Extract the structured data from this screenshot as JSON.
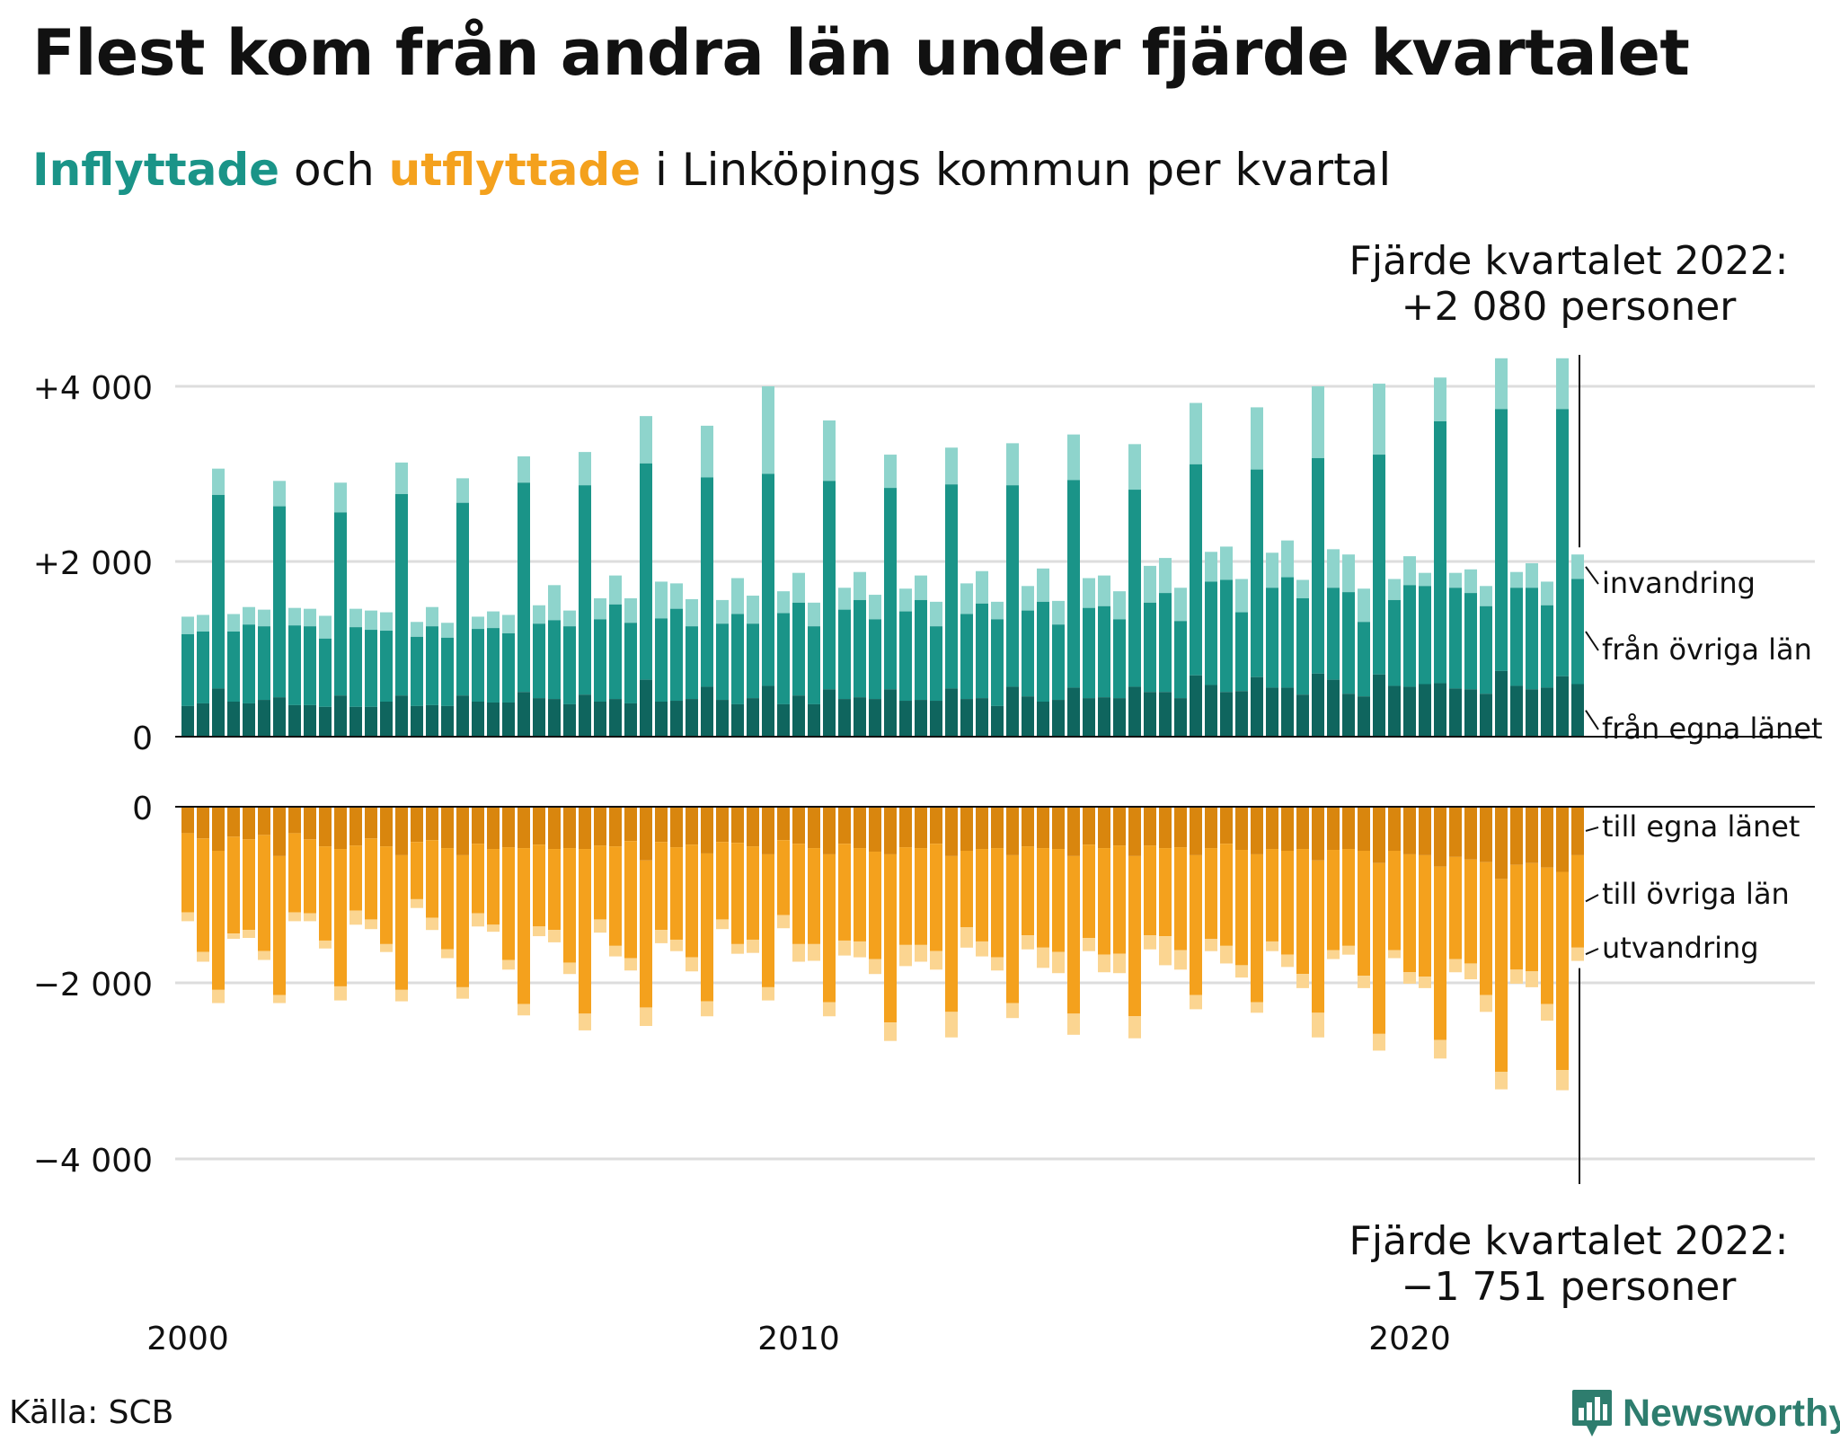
{
  "title": "Flest kom från andra län under fjärde kvartalet",
  "subtitle": {
    "part_in": "Inflyttade",
    "part_mid1": " och ",
    "part_out": "utflyttade",
    "part_mid2": " i Linköpings kommun per kvartal"
  },
  "colors": {
    "in_own": "#0f655e",
    "in_other": "#1a9488",
    "in_foreign": "#8ed4cc",
    "out_own": "#d9860e",
    "out_other": "#f4a11d",
    "out_foreign": "#fbd591",
    "axis": "#111111",
    "grid": "#dddddd"
  },
  "source": "Källa: SCB",
  "brand": "Newsworthy",
  "brand_icon": "bar-chart-speech-icon",
  "chart_data": {
    "type": "bar",
    "stacked": true,
    "start": "2000 Q1",
    "frequency": "quarterly",
    "x_ticks": [
      "2000",
      "2010",
      "2020"
    ],
    "y_ticks": {
      "in": [
        {
          "value": 0,
          "label": "0"
        },
        {
          "value": 2000,
          "label": "+2 000"
        },
        {
          "value": 4000,
          "label": "+4 000"
        }
      ],
      "out": [
        {
          "value": 0,
          "label": "0"
        },
        {
          "value": -2000,
          "label": "−2 000"
        },
        {
          "value": -4000,
          "label": "−4 000"
        }
      ]
    },
    "ylim_in": [
      0,
      4000
    ],
    "ylim_out": [
      -4000,
      0
    ],
    "grid": true,
    "series_labels": {
      "in_foreign": "invandring",
      "in_other": "från övriga län",
      "in_own": "från egna länet",
      "out_own": "till egna länet",
      "out_other": "till övriga län",
      "out_foreign": "utvandring"
    },
    "annotations": {
      "in": {
        "line1": "Fjärde kvartalet 2022:",
        "line2": "+2 080 personer"
      },
      "out": {
        "line1": "Fjärde kvartalet 2022:",
        "line2": "−1 751 personer"
      }
    },
    "inflow_cumulative": [
      [
        350,
        1170,
        1370
      ],
      [
        380,
        1200,
        1390
      ],
      [
        550,
        2760,
        3060
      ],
      [
        400,
        1200,
        1400
      ],
      [
        380,
        1280,
        1480
      ],
      [
        420,
        1260,
        1450
      ],
      [
        450,
        2630,
        2920
      ],
      [
        360,
        1270,
        1470
      ],
      [
        360,
        1260,
        1460
      ],
      [
        340,
        1120,
        1380
      ],
      [
        470,
        2560,
        2900
      ],
      [
        340,
        1250,
        1460
      ],
      [
        340,
        1220,
        1440
      ],
      [
        400,
        1210,
        1420
      ],
      [
        470,
        2770,
        3130
      ],
      [
        350,
        1140,
        1310
      ],
      [
        360,
        1260,
        1480
      ],
      [
        350,
        1130,
        1300
      ],
      [
        470,
        2670,
        2950
      ],
      [
        400,
        1230,
        1370
      ],
      [
        390,
        1240,
        1430
      ],
      [
        390,
        1180,
        1390
      ],
      [
        510,
        2900,
        3200
      ],
      [
        440,
        1290,
        1500
      ],
      [
        430,
        1330,
        1730
      ],
      [
        370,
        1260,
        1440
      ],
      [
        480,
        2870,
        3250
      ],
      [
        400,
        1340,
        1580
      ],
      [
        430,
        1510,
        1840
      ],
      [
        380,
        1300,
        1580
      ],
      [
        650,
        3120,
        3660
      ],
      [
        400,
        1350,
        1770
      ],
      [
        410,
        1460,
        1750
      ],
      [
        430,
        1260,
        1570
      ],
      [
        570,
        2960,
        3550
      ],
      [
        420,
        1290,
        1560
      ],
      [
        370,
        1400,
        1810
      ],
      [
        440,
        1290,
        1610
      ],
      [
        580,
        3000,
        4000
      ],
      [
        370,
        1410,
        1660
      ],
      [
        470,
        1530,
        1870
      ],
      [
        370,
        1260,
        1530
      ],
      [
        540,
        2920,
        3610
      ],
      [
        430,
        1450,
        1700
      ],
      [
        450,
        1560,
        1880
      ],
      [
        430,
        1340,
        1620
      ],
      [
        540,
        2840,
        3220
      ],
      [
        410,
        1430,
        1690
      ],
      [
        420,
        1560,
        1840
      ],
      [
        410,
        1260,
        1540
      ],
      [
        550,
        2880,
        3300
      ],
      [
        430,
        1400,
        1750
      ],
      [
        440,
        1520,
        1890
      ],
      [
        350,
        1340,
        1540
      ],
      [
        570,
        2870,
        3350
      ],
      [
        460,
        1440,
        1720
      ],
      [
        400,
        1540,
        1920
      ],
      [
        420,
        1280,
        1550
      ],
      [
        560,
        2930,
        3450
      ],
      [
        440,
        1470,
        1810
      ],
      [
        450,
        1490,
        1840
      ],
      [
        440,
        1340,
        1660
      ],
      [
        570,
        2820,
        3340
      ],
      [
        510,
        1530,
        1950
      ],
      [
        510,
        1640,
        2040
      ],
      [
        440,
        1320,
        1700
      ],
      [
        700,
        3110,
        3810
      ],
      [
        590,
        1770,
        2110
      ],
      [
        510,
        1790,
        2170
      ],
      [
        520,
        1420,
        1800
      ],
      [
        680,
        3050,
        3760
      ],
      [
        560,
        1700,
        2100
      ],
      [
        560,
        1820,
        2240
      ],
      [
        480,
        1580,
        1790
      ],
      [
        720,
        3180,
        4000
      ],
      [
        650,
        1700,
        2140
      ],
      [
        490,
        1650,
        2080
      ],
      [
        460,
        1310,
        1690
      ],
      [
        710,
        3220,
        4030
      ],
      [
        580,
        1560,
        1800
      ],
      [
        570,
        1730,
        2060
      ],
      [
        600,
        1720,
        1870
      ],
      [
        610,
        3600,
        4100
      ],
      [
        550,
        1700,
        1870
      ],
      [
        540,
        1640,
        1910
      ],
      [
        490,
        1490,
        1720
      ],
      [
        750,
        3740,
        4320
      ],
      [
        580,
        1700,
        1880
      ],
      [
        540,
        1700,
        1980
      ],
      [
        560,
        1500,
        1770
      ],
      [
        690,
        3740,
        4320
      ],
      [
        600,
        1800,
        2080
      ]
    ],
    "outflow_cumulative": [
      [
        -300,
        -1200,
        -1300
      ],
      [
        -360,
        -1650,
        -1760
      ],
      [
        -500,
        -2080,
        -2230
      ],
      [
        -340,
        -1440,
        -1500
      ],
      [
        -370,
        -1400,
        -1490
      ],
      [
        -320,
        -1640,
        -1740
      ],
      [
        -560,
        -2140,
        -2230
      ],
      [
        -300,
        -1200,
        -1300
      ],
      [
        -370,
        -1210,
        -1300
      ],
      [
        -450,
        -1520,
        -1610
      ],
      [
        -480,
        -2040,
        -2200
      ],
      [
        -440,
        -1180,
        -1340
      ],
      [
        -360,
        -1280,
        -1390
      ],
      [
        -450,
        -1560,
        -1650
      ],
      [
        -550,
        -2080,
        -2210
      ],
      [
        -400,
        -1050,
        -1150
      ],
      [
        -380,
        -1260,
        -1400
      ],
      [
        -470,
        -1620,
        -1720
      ],
      [
        -550,
        -2050,
        -2180
      ],
      [
        -420,
        -1210,
        -1360
      ],
      [
        -480,
        -1340,
        -1420
      ],
      [
        -460,
        -1740,
        -1850
      ],
      [
        -470,
        -2240,
        -2370
      ],
      [
        -430,
        -1360,
        -1470
      ],
      [
        -480,
        -1400,
        -1540
      ],
      [
        -470,
        -1770,
        -1900
      ],
      [
        -480,
        -2350,
        -2540
      ],
      [
        -440,
        -1280,
        -1430
      ],
      [
        -450,
        -1580,
        -1700
      ],
      [
        -390,
        -1720,
        -1860
      ],
      [
        -610,
        -2280,
        -2490
      ],
      [
        -400,
        -1400,
        -1550
      ],
      [
        -460,
        -1510,
        -1640
      ],
      [
        -430,
        -1710,
        -1870
      ],
      [
        -530,
        -2210,
        -2380
      ],
      [
        -400,
        -1280,
        -1390
      ],
      [
        -410,
        -1560,
        -1670
      ],
      [
        -450,
        -1510,
        -1660
      ],
      [
        -540,
        -2050,
        -2200
      ],
      [
        -380,
        -1230,
        -1380
      ],
      [
        -420,
        -1560,
        -1760
      ],
      [
        -470,
        -1560,
        -1750
      ],
      [
        -540,
        -2220,
        -2380
      ],
      [
        -420,
        -1520,
        -1690
      ],
      [
        -470,
        -1530,
        -1710
      ],
      [
        -510,
        -1730,
        -1900
      ],
      [
        -540,
        -2450,
        -2660
      ],
      [
        -460,
        -1570,
        -1810
      ],
      [
        -470,
        -1570,
        -1760
      ],
      [
        -420,
        -1640,
        -1850
      ],
      [
        -560,
        -2330,
        -2620
      ],
      [
        -500,
        -1370,
        -1600
      ],
      [
        -480,
        -1530,
        -1700
      ],
      [
        -470,
        -1710,
        -1860
      ],
      [
        -550,
        -2230,
        -2400
      ],
      [
        -450,
        -1460,
        -1620
      ],
      [
        -470,
        -1600,
        -1830
      ],
      [
        -480,
        -1650,
        -1890
      ],
      [
        -560,
        -2350,
        -2590
      ],
      [
        -430,
        -1490,
        -1640
      ],
      [
        -470,
        -1680,
        -1880
      ],
      [
        -440,
        -1670,
        -1890
      ],
      [
        -560,
        -2380,
        -2630
      ],
      [
        -440,
        -1460,
        -1620
      ],
      [
        -470,
        -1470,
        -1800
      ],
      [
        -460,
        -1630,
        -1850
      ],
      [
        -550,
        -2140,
        -2300
      ],
      [
        -470,
        -1500,
        -1640
      ],
      [
        -420,
        -1580,
        -1780
      ],
      [
        -490,
        -1800,
        -1940
      ],
      [
        -540,
        -2220,
        -2340
      ],
      [
        -480,
        -1530,
        -1640
      ],
      [
        -500,
        -1680,
        -1820
      ],
      [
        -480,
        -1900,
        -2060
      ],
      [
        -610,
        -2340,
        -2620
      ],
      [
        -490,
        -1630,
        -1730
      ],
      [
        -480,
        -1580,
        -1680
      ],
      [
        -500,
        -1920,
        -2060
      ],
      [
        -640,
        -2580,
        -2770
      ],
      [
        -500,
        -1630,
        -1720
      ],
      [
        -540,
        -1880,
        -2010
      ],
      [
        -550,
        -1930,
        -2060
      ],
      [
        -680,
        -2650,
        -2860
      ],
      [
        -570,
        -1730,
        -1880
      ],
      [
        -600,
        -1780,
        -1960
      ],
      [
        -630,
        -2140,
        -2330
      ],
      [
        -820,
        -3010,
        -3210
      ],
      [
        -660,
        -1850,
        -2010
      ],
      [
        -640,
        -1870,
        -2050
      ],
      [
        -690,
        -2240,
        -2430
      ],
      [
        -740,
        -2990,
        -3220
      ],
      [
        -550,
        -1600,
        -1751
      ]
    ]
  }
}
